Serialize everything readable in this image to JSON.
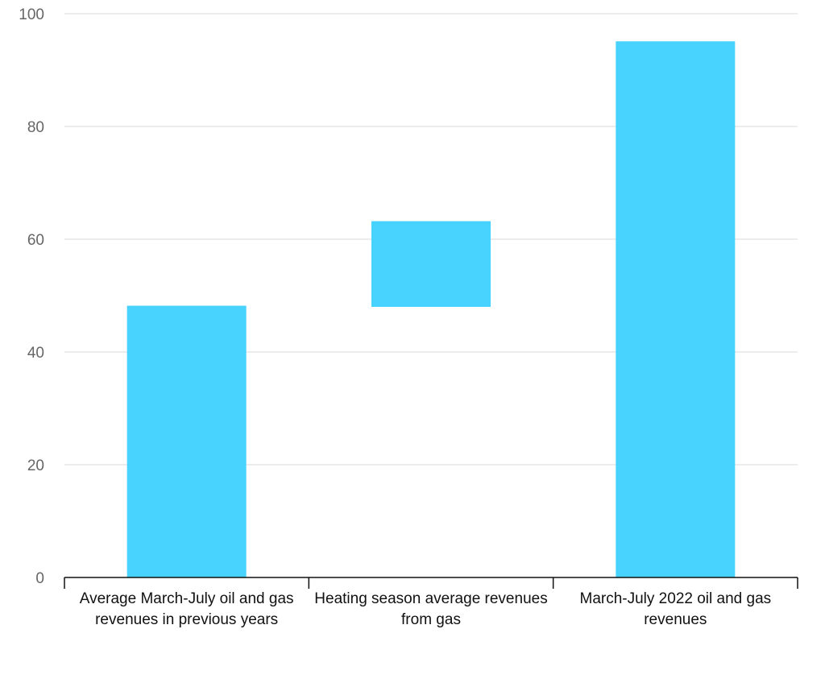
{
  "chart_data": {
    "type": "bar",
    "subtype": "waterfall",
    "categories": [
      "Average March-July oil and gas revenues in previous years",
      "Heating season average revenues from gas",
      "March-July 2022 oil and gas revenues"
    ],
    "bars": [
      {
        "category": "Average March-July oil and gas revenues in previous years",
        "start": 0,
        "end": 48.2
      },
      {
        "category": "Heating season average revenues from gas",
        "start": 48.0,
        "end": 63.2
      },
      {
        "category": "March-July 2022 oil and gas revenues",
        "start": 0,
        "end": 95.1
      }
    ],
    "title": "",
    "xlabel": "",
    "ylabel": "",
    "ylim": [
      0,
      100
    ],
    "yticks": [
      "0",
      "20",
      "40",
      "60",
      "80",
      "100"
    ],
    "grid": true,
    "bar_color": "#48d3ff",
    "grid_color": "#e6e6e6",
    "axis_color": "#111111",
    "tick_label_color": "#666666"
  }
}
